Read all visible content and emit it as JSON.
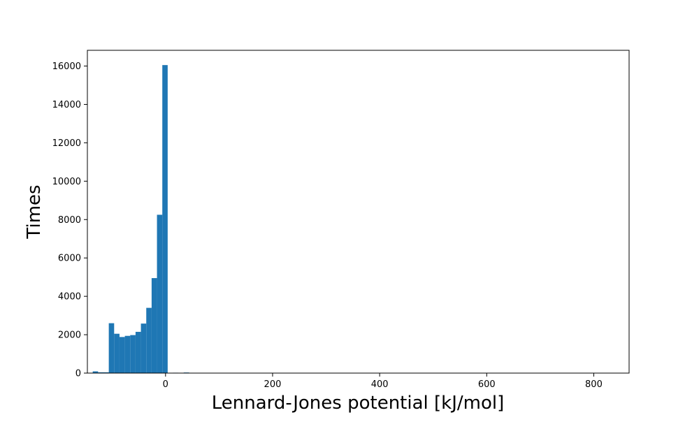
{
  "chart_data": {
    "type": "bar",
    "title": "",
    "xlabel": "Lennard-Jones potential [kJ/mol]",
    "ylabel": "Times",
    "xlim": [
      -146,
      866
    ],
    "ylim": [
      0,
      16820
    ],
    "xticks": [
      0,
      200,
      400,
      600,
      800
    ],
    "xtick_labels": [
      "0",
      "200",
      "400",
      "600",
      "800"
    ],
    "yticks": [
      0,
      2000,
      4000,
      6000,
      8000,
      10000,
      12000,
      14000,
      16000
    ],
    "ytick_labels": [
      "0",
      "2000",
      "4000",
      "6000",
      "8000",
      "10000",
      "12000",
      "14000",
      "16000"
    ],
    "grid": false,
    "legend": "none",
    "bar_color": "#1f77b4",
    "bins": [
      {
        "x0": -136,
        "x1": -126,
        "count": 90
      },
      {
        "x0": -126,
        "x1": -116,
        "count": 40
      },
      {
        "x0": -116,
        "x1": -106,
        "count": 40
      },
      {
        "x0": -106,
        "x1": -96,
        "count": 2600
      },
      {
        "x0": -96,
        "x1": -86,
        "count": 2050
      },
      {
        "x0": -86,
        "x1": -76,
        "count": 1880
      },
      {
        "x0": -76,
        "x1": -66,
        "count": 1940
      },
      {
        "x0": -66,
        "x1": -56,
        "count": 1980
      },
      {
        "x0": -56,
        "x1": -46,
        "count": 2150
      },
      {
        "x0": -46,
        "x1": -36,
        "count": 2580
      },
      {
        "x0": -36,
        "x1": -26,
        "count": 3400
      },
      {
        "x0": -26,
        "x1": -16,
        "count": 4950
      },
      {
        "x0": -16,
        "x1": -6,
        "count": 8250
      },
      {
        "x0": -6,
        "x1": 4,
        "count": 16050
      },
      {
        "x0": 14,
        "x1": 24,
        "count": 20
      },
      {
        "x0": 34,
        "x1": 44,
        "count": 30
      }
    ]
  }
}
